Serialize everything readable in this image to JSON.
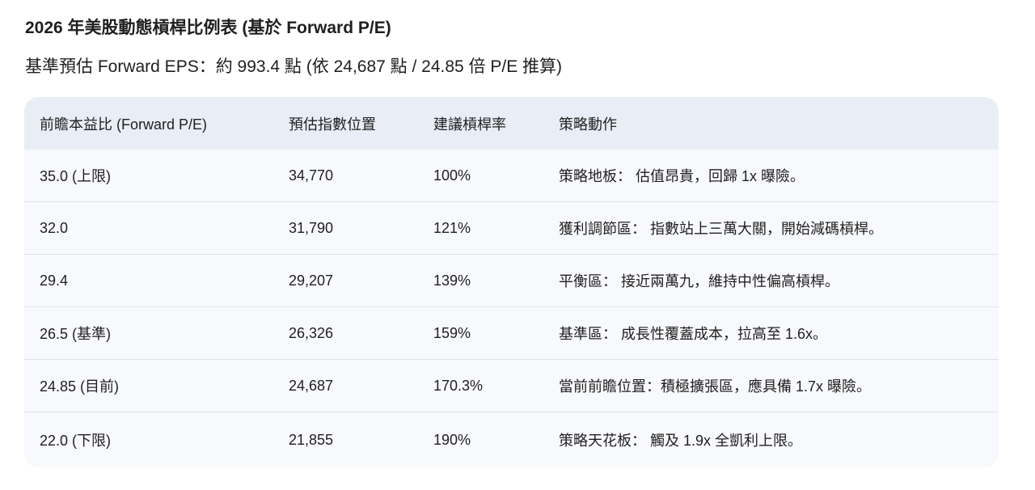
{
  "title": "2026 年美股動態槓桿比例表 (基於 Forward P/E)",
  "subtitle": "基準預估 Forward EPS：約 993.4 點 (依 24,687 點 / 24.85 倍 P/E 推算)",
  "table": {
    "headers": [
      "前瞻本益比 (Forward P/E)",
      "預估指數位置",
      "建議槓桿率",
      "策略動作"
    ],
    "rows": [
      [
        "35.0 (上限)",
        "34,770",
        "100%",
        "策略地板：  估值昂貴，回歸 1x 曝險。"
      ],
      [
        "32.0",
        "31,790",
        "121%",
        "獲利調節區：  指數站上三萬大關，開始減碼槓桿。"
      ],
      [
        "29.4",
        "29,207",
        "139%",
        "平衡區：  接近兩萬九，維持中性偏高槓桿。"
      ],
      [
        "26.5 (基準)",
        "26,326",
        "159%",
        "基準區：  成長性覆蓋成本，拉高至 1.6x。"
      ],
      [
        "24.85 (目前)",
        "24,687",
        "170.3%",
        "當前前瞻位置：積極擴張區，應具備 1.7x 曝險。"
      ],
      [
        "22.0 (下限)",
        "21,855",
        "190%",
        "策略天花板：  觸及 1.9x 全凱利上限。"
      ]
    ]
  }
}
